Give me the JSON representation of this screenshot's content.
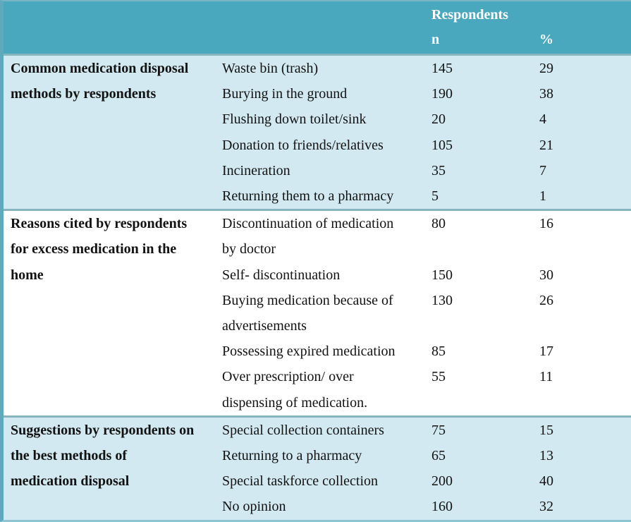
{
  "table": {
    "header": {
      "group": "Respondents",
      "n": "n",
      "pct": "%"
    },
    "sections": [
      {
        "category": "Common medication disposal\nmethods by respondents",
        "rows": [
          {
            "label": "Waste bin (trash)",
            "n": "145",
            "pct": "29"
          },
          {
            "label": "Burying in the ground",
            "n": "190",
            "pct": "38"
          },
          {
            "label": "Flushing down toilet/sink",
            "n": "20",
            "pct": "4"
          },
          {
            "label": "Donation to friends/relatives",
            "n": "105",
            "pct": "21"
          },
          {
            "label": "Incineration",
            "n": "35",
            "pct": "7"
          },
          {
            "label": "Returning them to a pharmacy",
            "n": "5",
            "pct": "1"
          }
        ]
      },
      {
        "category": "Reasons cited by respondents\nfor excess medication in the\nhome",
        "rows": [
          {
            "label": "Discontinuation of medication\nby doctor",
            "n": "80",
            "pct": "16"
          },
          {
            "label": "Self- discontinuation",
            "n": "150",
            "pct": "30"
          },
          {
            "label": "Buying medication because of\nadvertisements",
            "n": "130",
            "pct": "26"
          },
          {
            "label": "Possessing expired medication",
            "n": "85",
            "pct": "17"
          },
          {
            "label": "Over prescription/ over\ndispensing of medication.",
            "n": "55",
            "pct": "11"
          }
        ]
      },
      {
        "category": "Suggestions by respondents on\nthe best methods of\nmedication disposal",
        "rows": [
          {
            "label": "Special collection containers",
            "n": "75",
            "pct": "15"
          },
          {
            "label": "Returning to a pharmacy",
            "n": "65",
            "pct": "13"
          },
          {
            "label": "Special taskforce collection",
            "n": "200",
            "pct": "40"
          },
          {
            "label": "No opinion",
            "n": "160",
            "pct": "32"
          }
        ]
      }
    ]
  },
  "chart_data": {
    "type": "table",
    "title": "",
    "columns": [
      "Category",
      "Item",
      "n",
      "%"
    ],
    "rows": [
      [
        "Common medication disposal methods by respondents",
        "Waste bin (trash)",
        145,
        29
      ],
      [
        "Common medication disposal methods by respondents",
        "Burying in the ground",
        190,
        38
      ],
      [
        "Common medication disposal methods by respondents",
        "Flushing down toilet/sink",
        20,
        4
      ],
      [
        "Common medication disposal methods by respondents",
        "Donation to friends/relatives",
        105,
        21
      ],
      [
        "Common medication disposal methods by respondents",
        "Incineration",
        35,
        7
      ],
      [
        "Common medication disposal methods by respondents",
        "Returning them to a pharmacy",
        5,
        1
      ],
      [
        "Reasons cited by respondents for excess medication in the home",
        "Discontinuation of medication by doctor",
        80,
        16
      ],
      [
        "Reasons cited by respondents for excess medication in the home",
        "Self- discontinuation",
        150,
        30
      ],
      [
        "Reasons cited by respondents for excess medication in the home",
        "Buying medication because of advertisements",
        130,
        26
      ],
      [
        "Reasons cited by respondents for excess medication in the home",
        "Possessing expired medication",
        85,
        17
      ],
      [
        "Reasons cited by respondents for excess medication in the home",
        "Over prescription/ over dispensing of medication.",
        55,
        11
      ],
      [
        "Suggestions by respondents on the best methods of medication disposal",
        "Special collection containers",
        75,
        15
      ],
      [
        "Suggestions by respondents on the best methods of medication disposal",
        "Returning to a pharmacy",
        65,
        13
      ],
      [
        "Suggestions by respondents on the best methods of medication disposal",
        "Special taskforce collection",
        200,
        40
      ],
      [
        "Suggestions by respondents on the best methods of medication disposal",
        "No opinion",
        160,
        32
      ]
    ]
  },
  "colors": {
    "header_bg": "#49a8bd",
    "section_bg_blue": "#d2e9f1",
    "section_bg_white": "#ffffff",
    "divider": "#87b5c0",
    "left_border": "#5fa9bd",
    "text": "#121212",
    "header_text": "#ffffff"
  }
}
